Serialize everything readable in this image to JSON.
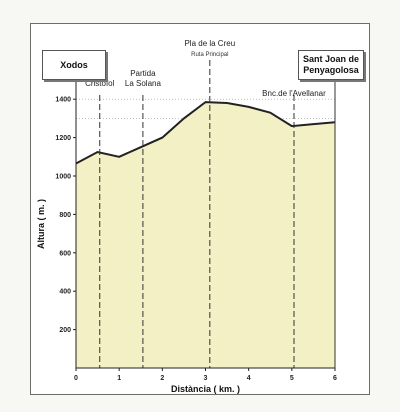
{
  "chart_data": {
    "type": "area",
    "xlabel": "Distància ( km. )",
    "ylabel": "Altura ( m. )",
    "xlim": [
      0,
      6
    ],
    "ylim": [
      0,
      1500
    ],
    "x_ticks": [
      0,
      1,
      2,
      3,
      4,
      5,
      6
    ],
    "y_ticks": [
      200,
      400,
      600,
      800,
      1000,
      1200,
      1400
    ],
    "x": [
      0,
      0.5,
      1,
      1.5,
      2,
      2.5,
      3,
      3.5,
      4,
      4.5,
      5,
      5.5,
      6
    ],
    "values": [
      1065,
      1125,
      1100,
      1150,
      1200,
      1300,
      1385,
      1380,
      1360,
      1330,
      1260,
      1270,
      1280
    ],
    "fill_color": "#f3f0c6",
    "line_color": "#222222",
    "start_label": "Xodos",
    "end_label": "Sant Joan de\nPenyagolosa",
    "markers": [
      {
        "x": 0.55,
        "label": "Sant\nCristofol"
      },
      {
        "x": 1.55,
        "label": "Partida\nLa Solana"
      },
      {
        "x": 3.1,
        "label": "Pla de la Creu",
        "sublabel": "Ruta Principal"
      },
      {
        "x": 5.05,
        "label": "Bnc.de l'Avellanar"
      }
    ]
  }
}
